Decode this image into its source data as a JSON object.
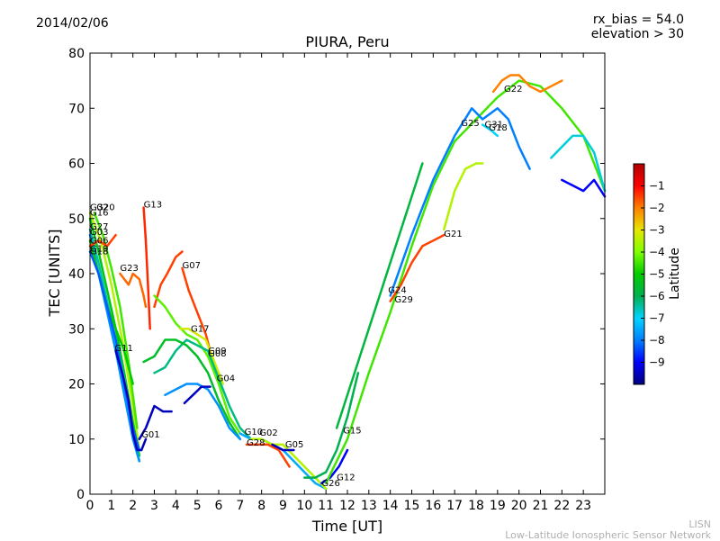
{
  "header": {
    "date": "2014/02/06",
    "rx_bias": "rx_bias = 54.0",
    "elevation": "elevation > 30"
  },
  "footer": {
    "line1": "LISN",
    "line2": "Low-Latitude Ionospheric Sensor Network"
  },
  "chart_data": {
    "type": "line",
    "title": "PIURA, Peru",
    "xlabel": "Time [UT]",
    "ylabel": "TEC [UNITS]",
    "xlim": [
      0,
      24
    ],
    "ylim": [
      0,
      80
    ],
    "xticks": [
      0,
      1,
      2,
      3,
      4,
      5,
      6,
      7,
      8,
      9,
      10,
      11,
      12,
      13,
      14,
      15,
      16,
      17,
      18,
      19,
      20,
      21,
      22,
      23
    ],
    "yticks": [
      0,
      10,
      20,
      30,
      40,
      50,
      60,
      70,
      80
    ],
    "grid": false,
    "colorbar": {
      "label": "Latitude",
      "min": -10,
      "max": 0,
      "ticks": [
        -9,
        -8,
        -7,
        -6,
        -5,
        -4,
        -3,
        -2,
        -1
      ],
      "colors": [
        "#00007f",
        "#0000ff",
        "#0080ff",
        "#00d4ff",
        "#00b050",
        "#00cc00",
        "#80ff00",
        "#e6e600",
        "#ff8000",
        "#ff0000",
        "#b00000"
      ]
    },
    "series": [
      {
        "name": "G32",
        "x": [
          0.0,
          0.5,
          1.0,
          1.5,
          2.0,
          2.3
        ],
        "y": [
          51,
          46,
          38,
          28,
          16,
          8
        ],
        "lat": -3.5
      },
      {
        "name": "G20",
        "x": [
          0.2,
          0.6,
          1.0,
          1.4,
          1.8,
          2.2
        ],
        "y": [
          51,
          47,
          41,
          34,
          24,
          12
        ],
        "lat": -4.5
      },
      {
        "name": "G16",
        "x": [
          0.0,
          0.4,
          0.8,
          1.2,
          1.6,
          2.0,
          2.3
        ],
        "y": [
          50,
          44,
          37,
          30,
          22,
          13,
          7
        ],
        "lat": -5.2
      },
      {
        "name": "G27",
        "x": [
          0.0,
          0.4,
          0.8,
          1.2,
          1.6,
          2.0,
          2.3
        ],
        "y": [
          48,
          42,
          35,
          28,
          21,
          12,
          6
        ],
        "lat": -6.5
      },
      {
        "name": "G03",
        "x": [
          0.0,
          0.4,
          0.8,
          1.2,
          1.6,
          2.0,
          2.3
        ],
        "y": [
          47,
          40,
          33,
          26,
          18,
          10,
          6
        ],
        "lat": -7.8
      },
      {
        "name": "G06",
        "x": [
          0.0,
          0.4,
          0.8,
          1.2,
          1.6,
          2.0
        ],
        "y": [
          46,
          40,
          34,
          30,
          26,
          20
        ],
        "lat": -5.0
      },
      {
        "name": "G19",
        "x": [
          0.0,
          0.4,
          0.8,
          1.2
        ],
        "y": [
          45,
          46,
          45,
          47
        ],
        "lat": -1.5
      },
      {
        "name": "G18",
        "x": [
          0.0,
          0.4,
          0.8,
          1.2,
          1.6,
          2.0,
          2.3
        ],
        "y": [
          44,
          40,
          34,
          28,
          20,
          12,
          8
        ],
        "lat": -8.3
      },
      {
        "name": "G23",
        "x": [
          1.4,
          1.8,
          2.0,
          2.3,
          2.5,
          2.6
        ],
        "y": [
          40,
          38,
          40,
          39,
          36,
          34
        ],
        "lat": -1.8
      },
      {
        "name": "G11",
        "x": [
          1.2,
          1.5,
          1.8,
          2.0,
          2.2,
          2.4,
          2.6
        ],
        "y": [
          26,
          22,
          17,
          11,
          8,
          8,
          10
        ],
        "lat": -9.5
      },
      {
        "name": "G01",
        "x": [
          2.3,
          2.6,
          3.0,
          3.4,
          3.8
        ],
        "y": [
          10,
          12,
          16,
          15,
          15
        ],
        "lat": -9.5
      },
      {
        "name": "G13",
        "x": [
          2.5,
          2.6,
          2.7,
          2.8
        ],
        "y": [
          52,
          46,
          38,
          30
        ],
        "lat": -1.3
      },
      {
        "name": "G07",
        "x": [
          3.0,
          3.3,
          3.6,
          4.0,
          4.3
        ],
        "y": [
          34,
          38,
          40,
          43,
          44
        ],
        "lat": -1.5
      },
      {
        "name": "G07b",
        "x": [
          4.3,
          4.6,
          5.0,
          5.4,
          5.8
        ],
        "y": [
          41,
          37,
          33,
          29,
          23
        ],
        "lat": -1.5
      },
      {
        "name": "G17",
        "x": [
          3.0,
          3.5,
          4.0,
          4.5,
          5.0,
          5.5,
          6.0,
          6.5,
          7.0
        ],
        "y": [
          36,
          34,
          31,
          29,
          28,
          25,
          20,
          14,
          11
        ],
        "lat": -4.3
      },
      {
        "name": "G17b",
        "x": [
          4.2,
          4.6,
          5.0,
          5.4,
          5.8,
          6.2
        ],
        "y": [
          30,
          30,
          29,
          28,
          24,
          20
        ],
        "lat": -3.2
      },
      {
        "name": "G09",
        "x": [
          3.0,
          3.5,
          4.0,
          4.5,
          5.0,
          5.5,
          6.0,
          6.5,
          7.0,
          7.5
        ],
        "y": [
          22,
          23,
          26,
          28,
          27,
          26,
          21,
          16,
          12,
          10
        ],
        "lat": -6.3
      },
      {
        "name": "G08",
        "x": [
          2.5,
          3.0,
          3.5,
          4.0,
          4.5,
          5.0,
          5.5,
          6.0,
          6.5,
          7.0
        ],
        "y": [
          24,
          25,
          28,
          28,
          27,
          25,
          22,
          17,
          13,
          10
        ],
        "lat": -5.5
      },
      {
        "name": "G04",
        "x": [
          3.5,
          4.0,
          4.5,
          5.0,
          5.5,
          6.0,
          6.5,
          7.0
        ],
        "y": [
          18,
          19,
          20,
          20,
          19,
          16,
          12,
          10
        ],
        "lat": -7.8
      },
      {
        "name": "G04b",
        "x": [
          4.4,
          4.8,
          5.2,
          5.6
        ],
        "y": [
          16.5,
          18,
          19.5,
          19.5
        ],
        "lat": -9.5
      },
      {
        "name": "G10",
        "x": [
          7.0,
          7.5,
          8.0,
          8.5,
          9.0,
          9.5,
          10.0,
          10.5,
          11.0
        ],
        "y": [
          11,
          10,
          10,
          9,
          8,
          6,
          4,
          2,
          1
        ],
        "lat": -7.5
      },
      {
        "name": "G02",
        "x": [
          7.5,
          8.0,
          8.5,
          9.0,
          9.5,
          10.0,
          10.5,
          11.0
        ],
        "y": [
          10,
          10,
          9,
          9,
          7,
          5,
          3,
          1
        ],
        "lat": -3.5
      },
      {
        "name": "G28",
        "x": [
          7.3,
          7.8,
          8.3,
          8.8,
          9.3
        ],
        "y": [
          9,
          9,
          9,
          8,
          5
        ],
        "lat": -1.5
      },
      {
        "name": "G05",
        "x": [
          8.5,
          9.0,
          9.5
        ],
        "y": [
          9,
          8,
          8
        ],
        "lat": -9.5
      },
      {
        "name": "G26",
        "x": [
          10.0,
          10.5,
          11.0,
          11.5,
          12.0,
          12.5
        ],
        "y": [
          3,
          3,
          4,
          8,
          14,
          22
        ],
        "lat": -6.0
      },
      {
        "name": "G12",
        "x": [
          10.8,
          11.2,
          11.6,
          12.0
        ],
        "y": [
          2,
          3,
          5,
          8
        ],
        "lat": -9.0
      },
      {
        "name": "G15",
        "x": [
          11.5,
          12.0,
          12.5,
          13.0,
          13.5,
          14.0,
          14.5,
          15.0,
          15.5
        ],
        "y": [
          12,
          18,
          24,
          30,
          36,
          42,
          48,
          54,
          60
        ],
        "lat": -5.8
      },
      {
        "name": "G24",
        "x": [
          11.0,
          12.0,
          13.0,
          14.0,
          15.0,
          16.0,
          17.0,
          18.0,
          19.0,
          20.0,
          21.0,
          22.0,
          23.0,
          24.0
        ],
        "y": [
          2,
          10,
          22,
          33,
          45,
          56,
          64,
          68,
          72,
          75,
          74,
          70,
          65,
          55
        ],
        "lat": -4.5
      },
      {
        "name": "G29",
        "x": [
          14.0,
          14.5,
          15.0,
          15.5,
          16.0,
          16.5
        ],
        "y": [
          35,
          38,
          42,
          45,
          46,
          47
        ],
        "lat": -1.5
      },
      {
        "name": "G25",
        "x": [
          14.0,
          15.0,
          16.0,
          17.0,
          17.8,
          18.3,
          19.0,
          19.5,
          20.0,
          20.5
        ],
        "y": [
          36,
          47,
          57,
          65,
          70,
          68,
          70,
          68,
          63,
          59
        ],
        "lat": -8.0
      },
      {
        "name": "G21",
        "x": [
          16.5,
          17.0,
          17.5,
          18.0,
          18.3
        ],
        "y": [
          48,
          55,
          59,
          60,
          60
        ],
        "lat": -3.5
      },
      {
        "name": "G31",
        "x": [
          18.3,
          18.7,
          19.0
        ],
        "y": [
          67,
          66,
          65
        ],
        "lat": -7.0
      },
      {
        "name": "G22",
        "x": [
          18.8,
          19.2,
          19.6,
          20.0,
          20.5,
          21.0,
          21.5,
          22.0
        ],
        "y": [
          73,
          75,
          76,
          76,
          74,
          73,
          74,
          75
        ],
        "lat": -2.0
      },
      {
        "name": "G22b",
        "x": [
          21.5,
          22.0,
          22.5,
          23.0,
          23.5,
          24.0
        ],
        "y": [
          61,
          63,
          65,
          65,
          62,
          55
        ],
        "lat": -6.8
      },
      {
        "name": "G30",
        "x": [
          22.0,
          22.5,
          23.0,
          23.5,
          24.0
        ],
        "y": [
          57,
          56,
          55,
          57,
          54
        ],
        "lat": -9.0
      }
    ],
    "labels": [
      {
        "text": "G32",
        "x": 0.0,
        "y": 51.5
      },
      {
        "text": "G20",
        "x": 0.3,
        "y": 51.5
      },
      {
        "text": "G16",
        "x": 0.0,
        "y": 50.5
      },
      {
        "text": "G27",
        "x": 0.0,
        "y": 48.0
      },
      {
        "text": "G03",
        "x": 0.0,
        "y": 47.0
      },
      {
        "text": "G06",
        "x": 0.0,
        "y": 45.5
      },
      {
        "text": "G19",
        "x": 0.0,
        "y": 44.0
      },
      {
        "text": "G18",
        "x": 0.0,
        "y": 43.5
      },
      {
        "text": "G23",
        "x": 1.4,
        "y": 40.5
      },
      {
        "text": "G13",
        "x": 2.5,
        "y": 52.0
      },
      {
        "text": "G07",
        "x": 4.3,
        "y": 41.0
      },
      {
        "text": "G11",
        "x": 1.15,
        "y": 26.0
      },
      {
        "text": "G17",
        "x": 4.7,
        "y": 29.5
      },
      {
        "text": "G09",
        "x": 5.5,
        "y": 25.5
      },
      {
        "text": "G08",
        "x": 5.5,
        "y": 25.0
      },
      {
        "text": "G04",
        "x": 5.9,
        "y": 20.5
      },
      {
        "text": "G01",
        "x": 2.4,
        "y": 10.3
      },
      {
        "text": "G10",
        "x": 7.2,
        "y": 10.8
      },
      {
        "text": "G02",
        "x": 7.9,
        "y": 10.6
      },
      {
        "text": "G28",
        "x": 7.3,
        "y": 8.8
      },
      {
        "text": "G05",
        "x": 9.1,
        "y": 8.5
      },
      {
        "text": "G15",
        "x": 11.8,
        "y": 11.0
      },
      {
        "text": "G12",
        "x": 11.5,
        "y": 2.5
      },
      {
        "text": "G26",
        "x": 10.8,
        "y": 1.5
      },
      {
        "text": "G24",
        "x": 13.9,
        "y": 36.5
      },
      {
        "text": "G29",
        "x": 14.2,
        "y": 34.8
      },
      {
        "text": "G21",
        "x": 16.5,
        "y": 46.7
      },
      {
        "text": "G25",
        "x": 17.3,
        "y": 66.8
      },
      {
        "text": "G31",
        "x": 18.4,
        "y": 66.5
      },
      {
        "text": "G18",
        "x": 18.6,
        "y": 66.0
      },
      {
        "text": "G22",
        "x": 19.3,
        "y": 73.0
      }
    ]
  }
}
